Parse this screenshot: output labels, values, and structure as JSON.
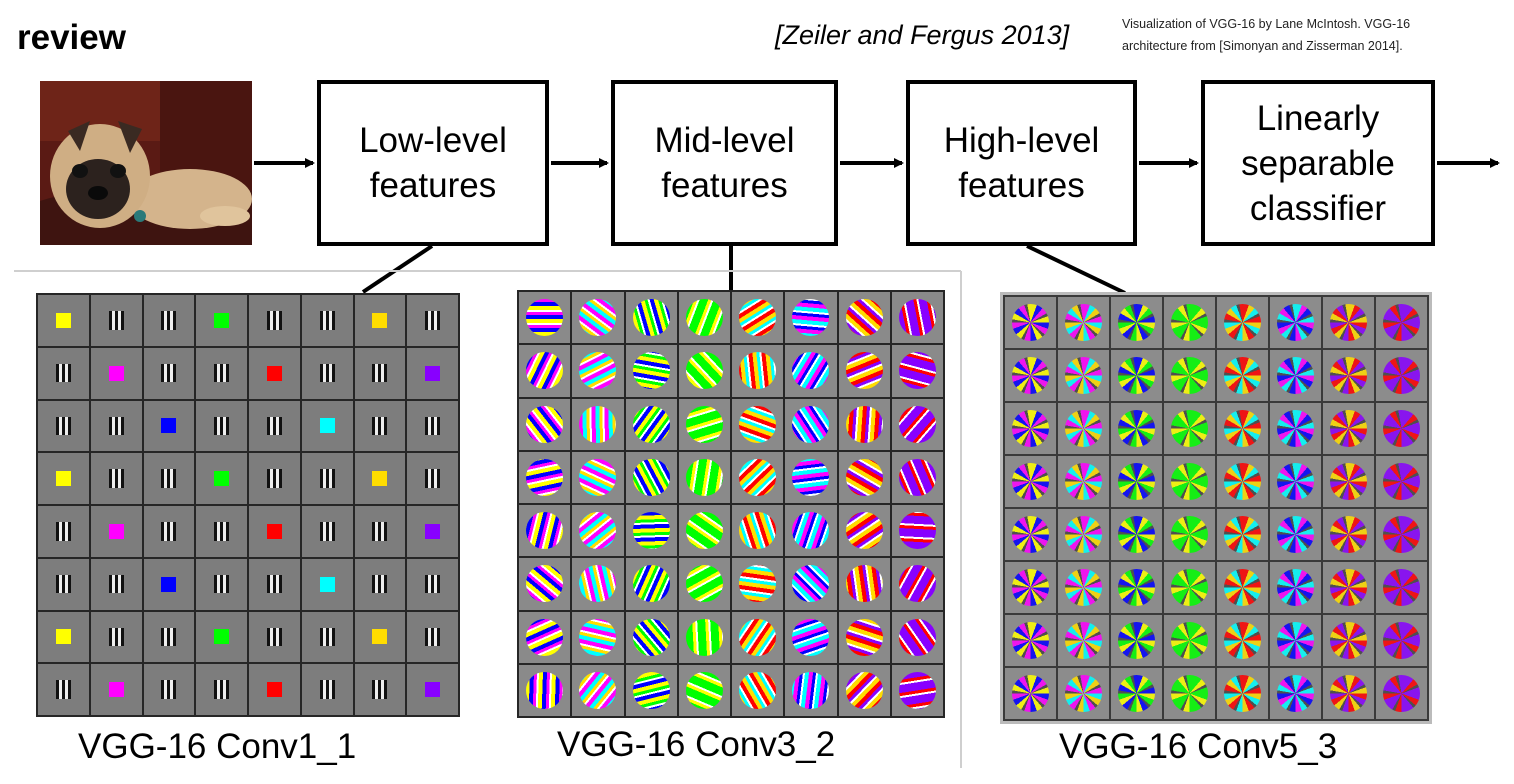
{
  "header": {
    "title": "review",
    "citation": "[Zeiler and Fergus 2013]",
    "credit_line1": "Visualization of VGG-16 by Lane McIntosh. VGG-16",
    "credit_line2": "architecture from [Simonyan and Zisserman 2014]."
  },
  "pipeline": {
    "stages": [
      "Low-level\nfeatures",
      "Mid-level\nfeatures",
      "High-level\nfeatures",
      "Linearly\nseparable\nclassifier"
    ]
  },
  "panels": {
    "conv1": "VGG-16 Conv1_1",
    "conv3": "VGG-16 Conv3_2",
    "conv5": "VGG-16 Conv5_3"
  },
  "colors": {
    "filter_palette": [
      "#ffff00",
      "#ff00ff",
      "#0000ff",
      "#00ff00",
      "#ff0000",
      "#00ffff",
      "#ffdd00",
      "#8800ff"
    ]
  }
}
